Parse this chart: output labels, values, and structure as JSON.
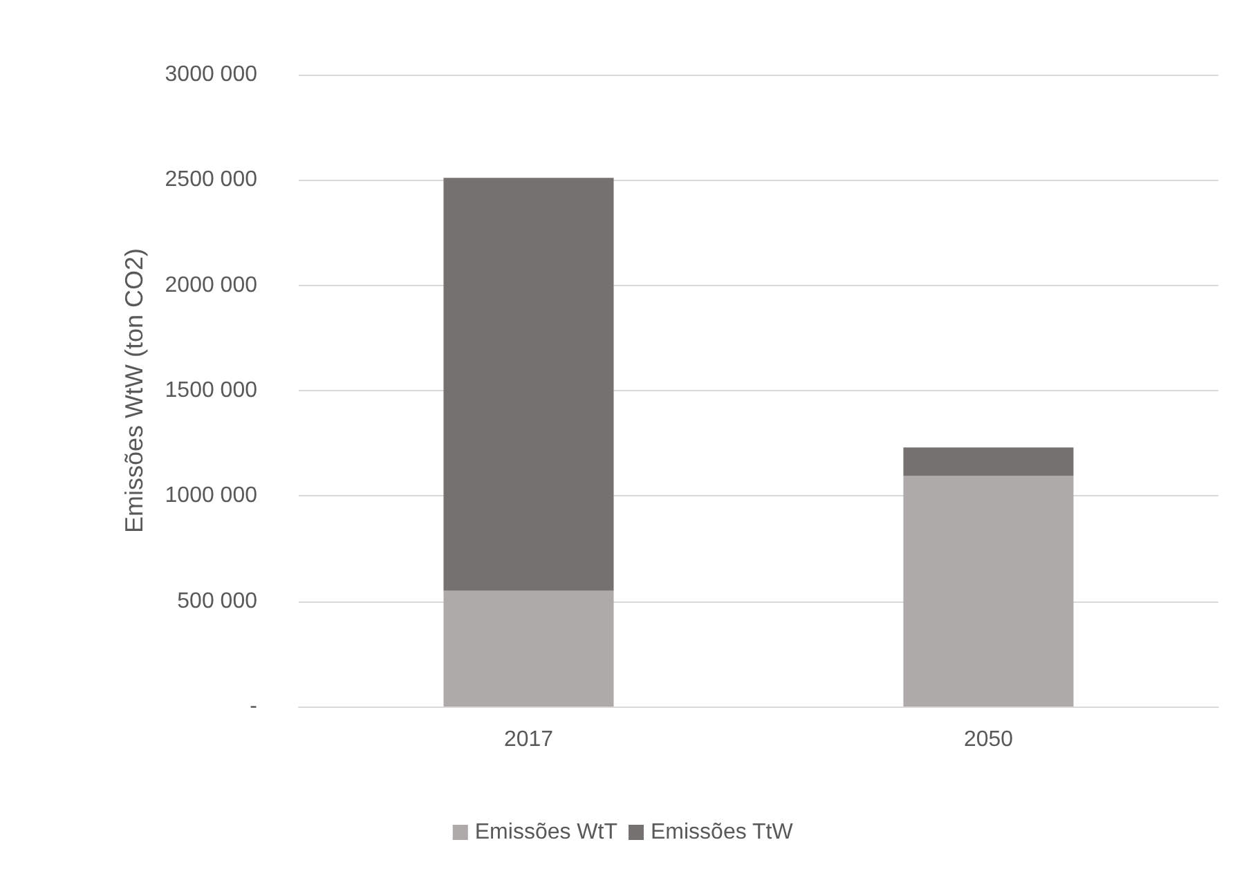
{
  "chart_data": {
    "type": "bar",
    "stacked": true,
    "ylabel": "Emissões WtW (ton CO2)",
    "categories": [
      "2017",
      "2050"
    ],
    "series": [
      {
        "name": "Emissões WtT",
        "color": "#aeaaaa",
        "values": [
          550000,
          1095000
        ]
      },
      {
        "name": "Emissões TtW",
        "color": "#767171",
        "values": [
          1960000,
          135000
        ]
      }
    ],
    "ylim": [
      0,
      3000000
    ],
    "yticks": [
      {
        "value": 0,
        "label": "-"
      },
      {
        "value": 500000,
        "label": "500 000"
      },
      {
        "value": 1000000,
        "label": "1000 000"
      },
      {
        "value": 1500000,
        "label": "1500 000"
      },
      {
        "value": 2000000,
        "label": "2000 000"
      },
      {
        "value": 2500000,
        "label": "2500 000"
      },
      {
        "value": 3000000,
        "label": "3000 000"
      }
    ],
    "grid": "y",
    "legend": "bottom"
  }
}
